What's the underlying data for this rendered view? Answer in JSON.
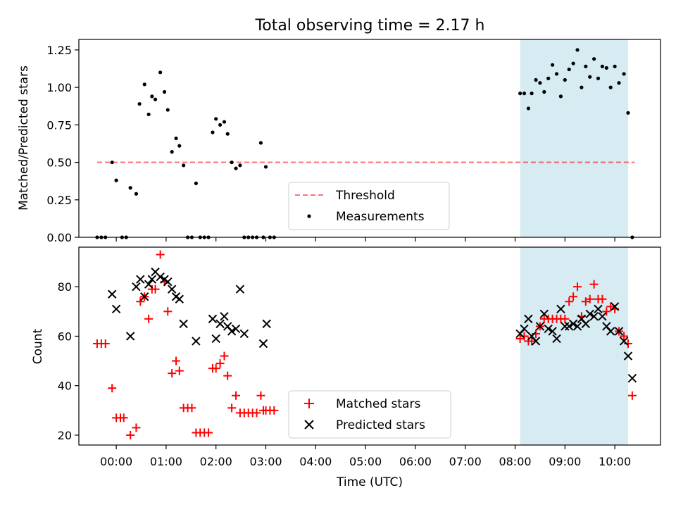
{
  "chart_data": [
    {
      "type": "scatter",
      "title": "Total observing time = 2.17 h",
      "xlabel": "",
      "ylabel": "Matched/Predicted stars",
      "xlim": [
        "23:15",
        "10:55"
      ],
      "ylim": [
        0,
        1.32
      ],
      "yticks": [
        "0.00",
        "0.25",
        "0.50",
        "0.75",
        "1.00",
        "1.25"
      ],
      "shaded_span": {
        "start": "08:06",
        "end": "10:16",
        "color": "#add8e6"
      },
      "threshold": {
        "name": "Threshold",
        "value": 0.5,
        "x_start": "23:37",
        "x_end": "10:24",
        "color": "#ff0000"
      },
      "legend": {
        "position": "lower-center",
        "entries": [
          "Threshold",
          "Measurements"
        ]
      },
      "series": [
        {
          "name": "Measurements",
          "color": "#000000",
          "x": [
            "23:37",
            "23:42",
            "23:47",
            "23:55",
            "00:00",
            "00:07",
            "00:12",
            "00:17",
            "00:24",
            "00:28",
            "00:34",
            "00:39",
            "00:43",
            "00:47",
            "00:53",
            "00:58",
            "01:02",
            "01:07",
            "01:12",
            "01:16",
            "01:21",
            "01:26",
            "01:31",
            "01:36",
            "01:41",
            "01:46",
            "01:51",
            "01:56",
            "02:00",
            "02:05",
            "02:10",
            "02:14",
            "02:19",
            "02:24",
            "02:29",
            "02:34",
            "02:39",
            "02:44",
            "02:49",
            "02:54",
            "02:57",
            "03:00",
            "03:05",
            "03:10",
            "08:06",
            "08:11",
            "08:16",
            "08:20",
            "08:25",
            "08:30",
            "08:35",
            "08:40",
            "08:45",
            "08:50",
            "08:55",
            "09:00",
            "09:05",
            "09:10",
            "09:15",
            "09:20",
            "09:25",
            "09:30",
            "09:35",
            "09:40",
            "09:45",
            "09:50",
            "09:55",
            "10:00",
            "10:05",
            "10:11",
            "10:16",
            "10:21"
          ],
          "y": [
            0,
            0,
            0,
            0.5,
            0.38,
            0,
            0,
            0.33,
            0.29,
            0.89,
            1.02,
            0.82,
            0.94,
            0.92,
            1.1,
            0.97,
            0.85,
            0.57,
            0.66,
            0.61,
            0.48,
            0,
            0,
            0.36,
            0,
            0,
            0,
            0.7,
            0.79,
            0.75,
            0.77,
            0.69,
            0.5,
            0.46,
            0.48,
            0,
            0,
            0,
            0,
            0.63,
            0,
            0.47,
            0,
            0,
            0.96,
            0.96,
            0.86,
            0.96,
            1.05,
            1.03,
            0.97,
            1.06,
            1.15,
            1.09,
            0.94,
            1.05,
            1.12,
            1.16,
            1.25,
            1.0,
            1.14,
            1.07,
            1.19,
            1.06,
            1.14,
            1.13,
            1.0,
            1.14,
            1.03,
            1.09,
            0.83,
            0
          ]
        }
      ]
    },
    {
      "type": "scatter",
      "title": "",
      "xlabel": "Time (UTC)",
      "ylabel": "Count",
      "xlim": [
        "23:15",
        "10:55"
      ],
      "ylim": [
        16,
        96
      ],
      "yticks": [
        "20",
        "40",
        "60",
        "80"
      ],
      "xticks": [
        "00:00",
        "01:00",
        "02:00",
        "03:00",
        "04:00",
        "05:00",
        "06:00",
        "07:00",
        "08:00",
        "09:00",
        "10:00"
      ],
      "shaded_span": {
        "start": "08:06",
        "end": "10:16",
        "color": "#add8e6"
      },
      "legend": {
        "position": "lower-center",
        "entries": [
          "Matched stars",
          "Predicted stars"
        ]
      },
      "series": [
        {
          "name": "Matched stars",
          "marker": "+",
          "color": "#ff0000",
          "x": [
            "23:37",
            "23:42",
            "23:47",
            "23:55",
            "00:00",
            "00:05",
            "00:09",
            "00:17",
            "00:24",
            "00:29",
            "00:34",
            "00:39",
            "00:43",
            "00:47",
            "00:53",
            "00:58",
            "01:02",
            "01:07",
            "01:12",
            "01:16",
            "01:21",
            "01:26",
            "01:31",
            "01:36",
            "01:41",
            "01:46",
            "01:51",
            "01:56",
            "02:00",
            "02:05",
            "02:10",
            "02:14",
            "02:19",
            "02:24",
            "02:29",
            "02:34",
            "02:39",
            "02:44",
            "02:49",
            "02:54",
            "02:57",
            "03:00",
            "03:05",
            "03:10",
            "08:06",
            "08:11",
            "08:16",
            "08:20",
            "08:25",
            "08:30",
            "08:35",
            "08:40",
            "08:45",
            "08:50",
            "08:55",
            "09:00",
            "09:05",
            "09:10",
            "09:15",
            "09:20",
            "09:25",
            "09:30",
            "09:35",
            "09:40",
            "09:45",
            "09:50",
            "09:55",
            "10:00",
            "10:05",
            "10:11",
            "10:16",
            "10:21"
          ],
          "y": [
            57,
            57,
            57,
            39,
            27,
            27,
            27,
            20,
            23,
            74,
            76,
            67,
            79,
            79,
            93,
            82,
            70,
            45,
            50,
            46,
            31,
            31,
            31,
            21,
            21,
            21,
            21,
            47,
            47,
            49,
            52,
            44,
            31,
            36,
            29,
            29,
            29,
            29,
            29,
            36,
            30,
            30,
            30,
            30,
            59,
            60,
            58,
            58,
            61,
            64,
            67,
            67,
            67,
            67,
            67,
            67,
            74,
            76,
            80,
            68,
            74,
            75,
            81,
            75,
            75,
            70,
            72,
            71,
            62,
            60,
            57,
            36
          ]
        },
        {
          "name": "Predicted stars",
          "marker": "x",
          "color": "#000000",
          "x": [
            "23:55",
            "00:00",
            "00:17",
            "00:24",
            "00:29",
            "00:34",
            "00:39",
            "00:43",
            "00:47",
            "00:53",
            "00:58",
            "01:02",
            "01:07",
            "01:12",
            "01:16",
            "01:21",
            "01:36",
            "01:56",
            "02:00",
            "02:05",
            "02:10",
            "02:14",
            "02:19",
            "02:24",
            "02:29",
            "02:34",
            "02:57",
            "03:01",
            "08:06",
            "08:11",
            "08:16",
            "08:20",
            "08:25",
            "08:30",
            "08:35",
            "08:40",
            "08:45",
            "08:50",
            "08:55",
            "09:00",
            "09:05",
            "09:10",
            "09:15",
            "09:20",
            "09:25",
            "09:30",
            "09:35",
            "09:40",
            "09:45",
            "09:50",
            "09:55",
            "10:00",
            "10:05",
            "10:11",
            "10:16",
            "10:21"
          ],
          "y": [
            77,
            71,
            60,
            80,
            83,
            76,
            81,
            83,
            86,
            84,
            83,
            82,
            79,
            76,
            75,
            65,
            58,
            67,
            59,
            65,
            68,
            64,
            62,
            63,
            79,
            61,
            57,
            65,
            61,
            63,
            67,
            60,
            58,
            64,
            69,
            63,
            62,
            59,
            71,
            64,
            64,
            65,
            64,
            67,
            65,
            69,
            68,
            71,
            68,
            64,
            62,
            72,
            62,
            58,
            52,
            43
          ]
        }
      ]
    }
  ]
}
